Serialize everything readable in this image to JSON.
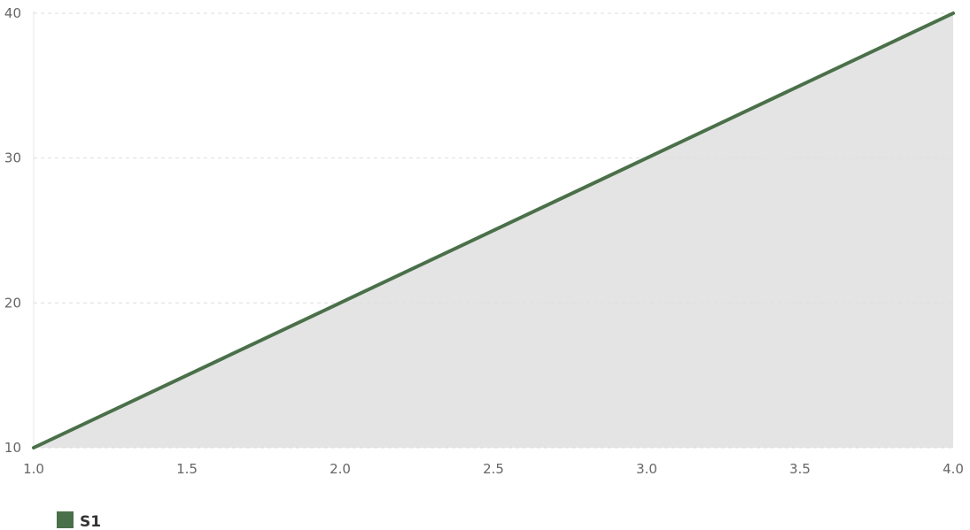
{
  "chart_data": {
    "type": "area",
    "x": [
      1.0,
      2.0,
      3.0,
      4.0
    ],
    "series": [
      {
        "name": "S1",
        "values": [
          10,
          20,
          30,
          40
        ],
        "color": "#4a7049",
        "fill": "#e4e4e4"
      }
    ],
    "xlim": [
      1.0,
      4.0
    ],
    "ylim": [
      10,
      40
    ],
    "xticks": [
      "1.0",
      "1.5",
      "2.0",
      "2.5",
      "3.0",
      "3.5",
      "4.0"
    ],
    "yticks": [
      "10",
      "20",
      "30",
      "40"
    ],
    "grid": "horizontal dashed",
    "legend": "bottom-left",
    "title": "",
    "xlabel": "",
    "ylabel": ""
  }
}
